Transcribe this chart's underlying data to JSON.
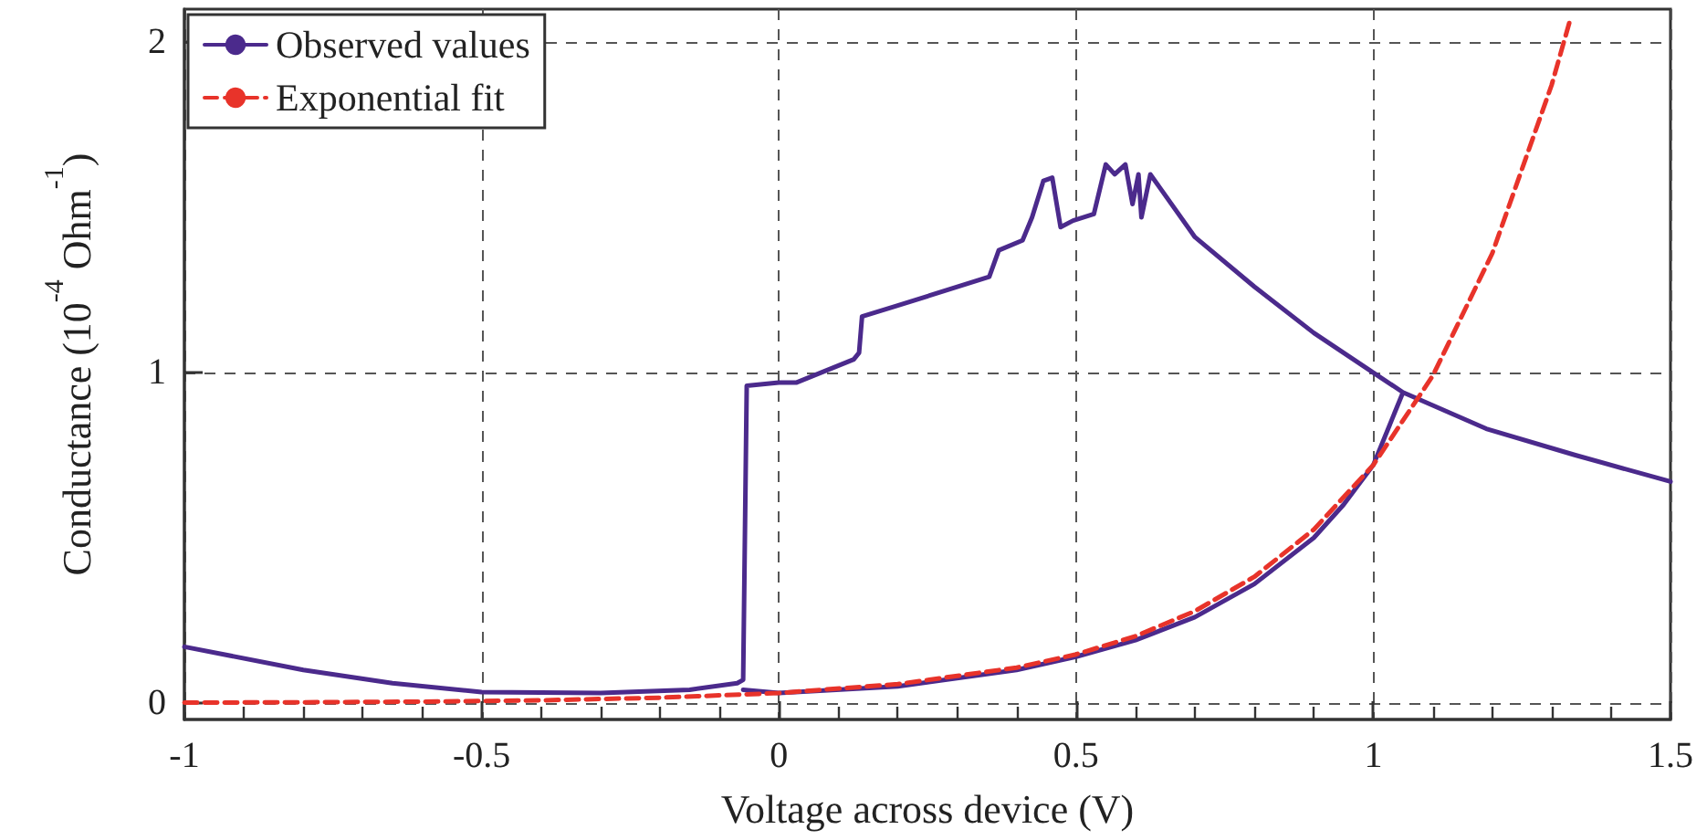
{
  "chart_data": {
    "type": "line",
    "xlabel": "Voltage across device (V)",
    "ylabel": "Conductance (10$^{-4}$ Ohm$^{-1}$)",
    "xlim": [
      -1,
      1.5
    ],
    "xticks": [
      -1,
      -0.5,
      0,
      0.5,
      1,
      1.5
    ],
    "ylim": [
      -0.05,
      2.1
    ],
    "yticks": [
      0,
      1,
      2
    ],
    "grid": true,
    "legend": "top left",
    "marker": "none",
    "series": [
      {
        "name": "Observed values",
        "color": "#4b2a8c",
        "line_style": "solid",
        "x": [
          -1,
          -0.8,
          -0.65,
          -0.5,
          -0.3,
          -0.15,
          -0.07,
          -0.06,
          -0.054,
          0,
          0.03,
          0.126,
          0.135,
          0.14,
          0.195,
          0.354,
          0.37,
          0.41,
          0.426,
          0.445,
          0.46,
          0.474,
          0.495,
          0.53,
          0.55,
          0.565,
          0.583,
          0.595,
          0.605,
          0.61,
          0.625,
          0.7,
          0.8,
          0.9,
          1.0,
          1.05,
          1.19,
          1.34,
          1.5,
          null,
          -0.06,
          0,
          0.2,
          0.4,
          0.5,
          0.6,
          0.7,
          0.8,
          0.9,
          0.95,
          1.0,
          1.05
        ],
        "values": [
          0.17,
          0.1,
          0.06,
          0.033,
          0.03,
          0.04,
          0.06,
          0.07,
          0.96,
          0.97,
          0.97,
          1.04,
          1.06,
          1.17,
          1.2,
          1.29,
          1.37,
          1.4,
          1.47,
          1.58,
          1.59,
          1.44,
          1.46,
          1.48,
          1.63,
          1.6,
          1.63,
          1.51,
          1.6,
          1.47,
          1.6,
          1.41,
          1.26,
          1.12,
          1.0,
          0.94,
          0.83,
          0.75,
          0.67,
          null,
          0.04,
          0.03,
          0.05,
          0.1,
          0.14,
          0.19,
          0.26,
          0.36,
          0.5,
          0.6,
          0.72,
          0.94
        ]
      },
      {
        "name": "Exponential fit",
        "color": "#e8332a",
        "line_style": "dashed",
        "x": [
          -1,
          -0.8,
          -0.6,
          -0.4,
          -0.2,
          0,
          0.2,
          0.4,
          0.5,
          0.6,
          0.7,
          0.8,
          0.9,
          1.0,
          1.1,
          1.2,
          1.3,
          1.33
        ],
        "values": [
          0.001,
          0.002,
          0.004,
          0.008,
          0.016,
          0.03,
          0.057,
          0.107,
          0.147,
          0.202,
          0.278,
          0.382,
          0.525,
          0.72,
          0.99,
          1.36,
          1.87,
          2.06
        ]
      }
    ]
  }
}
